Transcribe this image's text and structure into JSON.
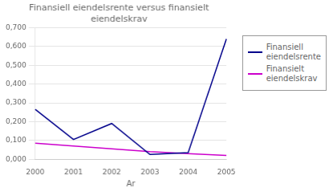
{
  "chart_data": {
    "type": "line",
    "title": "Finansiell eiendelsrente versus finansielt\neiendelskrav",
    "xlabel": "Ar",
    "categories": [
      "2000",
      "2001",
      "2002",
      "2003",
      "2004",
      "2005"
    ],
    "series": [
      {
        "name": "Finansiell\neiendelsrente",
        "color": "#00008B",
        "values": [
          0.265,
          0.105,
          0.19,
          0.025,
          0.035,
          0.64
        ]
      },
      {
        "name": "Finansielt\neiendelskrav",
        "color": "#CC00CC",
        "values": [
          0.085,
          0.07,
          0.055,
          0.04,
          0.03,
          0.02
        ]
      }
    ],
    "ylim": [
      0.0,
      0.7
    ],
    "yticks": [
      {
        "value": 0.0,
        "label": "0,000"
      },
      {
        "value": 0.1,
        "label": "0,100"
      },
      {
        "value": 0.2,
        "label": "0,200"
      },
      {
        "value": 0.3,
        "label": "0,300"
      },
      {
        "value": 0.4,
        "label": "0,400"
      },
      {
        "value": 0.5,
        "label": "0,500"
      },
      {
        "value": 0.6,
        "label": "0,600"
      },
      {
        "value": 0.7,
        "label": "0,700"
      }
    ],
    "grid": true,
    "legend": "right"
  }
}
